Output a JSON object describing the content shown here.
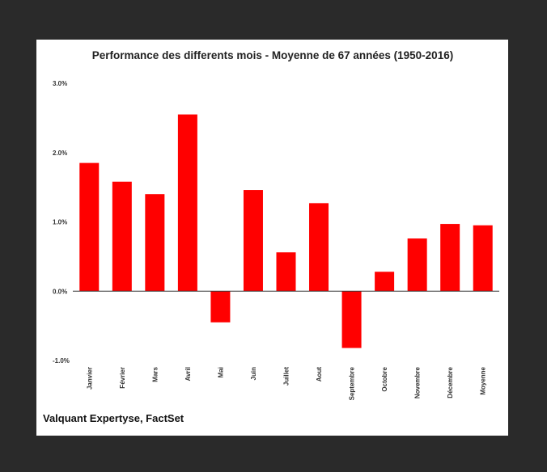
{
  "source_note": "Valquant Expertyse, FactSet",
  "colors": {
    "bar": "#ff0000",
    "background": "#2a2a2a",
    "panel": "#ffffff",
    "axis": "#333333"
  },
  "chart_data": {
    "type": "bar",
    "title": "Performance des differents mois  - Moyenne de 67 années (1950-2016)",
    "xlabel": "",
    "ylabel": "",
    "ylim": [
      -1.0,
      3.0
    ],
    "yticks": [
      {
        "value": 3.0,
        "label": "3.0%"
      },
      {
        "value": 2.0,
        "label": "2.0%"
      },
      {
        "value": 1.0,
        "label": "1.0%"
      },
      {
        "value": 0.0,
        "label": "0.0%"
      },
      {
        "value": -1.0,
        "label": "-1.0%"
      }
    ],
    "grid": false,
    "categories": [
      "Janvier",
      "Février",
      "Mars",
      "Avril",
      "Mai",
      "Juin",
      "Juillet",
      "Aout",
      "Septembre",
      "Octobre",
      "Novembre",
      "Décembre",
      "Moyenne"
    ],
    "values": [
      1.85,
      1.58,
      1.4,
      2.55,
      -0.45,
      1.46,
      0.56,
      1.27,
      -0.82,
      0.28,
      0.76,
      0.97,
      0.95
    ]
  }
}
